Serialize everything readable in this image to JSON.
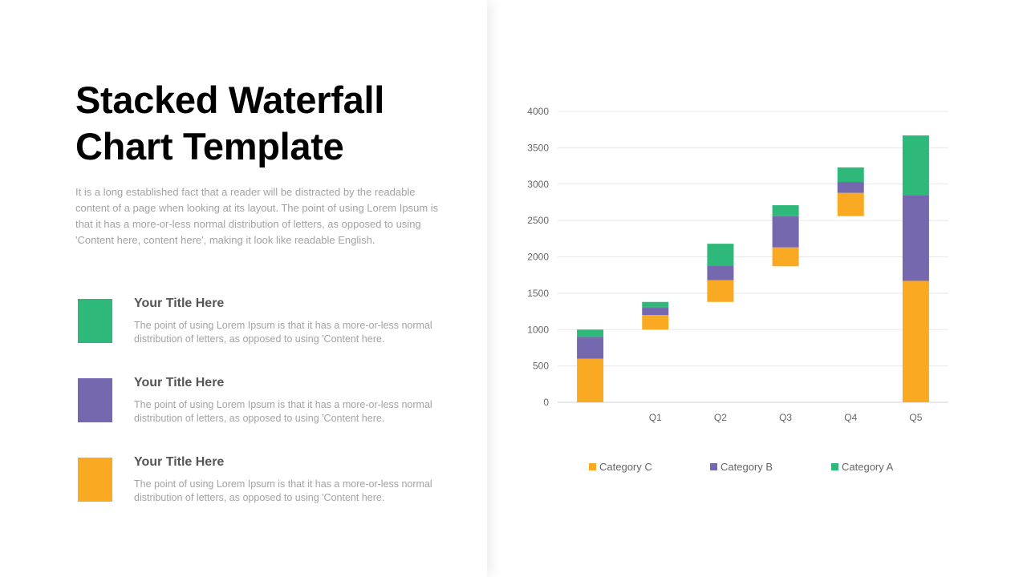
{
  "page": {
    "title_lines": [
      "Stacked Waterfall",
      "Chart Template"
    ],
    "intro": "It is a long established fact that a reader will be distracted by the readable content of a page when looking at its layout. The point of using Lorem Ipsum is that it has a more-or-less normal distribution of letters, as opposed to using 'Content here, content here', making it look like readable English."
  },
  "legend_items": [
    {
      "title": "Your Title Here",
      "desc": "The point of using Lorem Ipsum is that it has a more-or-less normal distribution of letters,  as opposed to using 'Content here.",
      "color": "#2eb87a"
    },
    {
      "title": "Your Title Here",
      "desc": "The point of using Lorem Ipsum is that it has a more-or-less normal distribution of letters,  as opposed to using 'Content here.",
      "color": "#7668ae"
    },
    {
      "title": "Your Title Here",
      "desc": "The point of using Lorem Ipsum is that it has a more-or-less normal distribution of letters,  as opposed to using 'Content here.",
      "color": "#faa922"
    }
  ],
  "chart_data": {
    "type": "bar",
    "stacked": true,
    "waterfall": true,
    "categories": [
      "",
      "Q1",
      "Q2",
      "Q3",
      "Q4",
      "Q5"
    ],
    "base": [
      0,
      1000,
      1380,
      1870,
      2560,
      0
    ],
    "series": [
      {
        "name": "Category C",
        "color": "#faa922",
        "values": [
          600,
          200,
          300,
          260,
          320,
          1670
        ]
      },
      {
        "name": "Category B",
        "color": "#7668ae",
        "values": [
          300,
          100,
          200,
          430,
          150,
          1180
        ]
      },
      {
        "name": "Category A",
        "color": "#2eb87a",
        "values": [
          100,
          80,
          300,
          150,
          200,
          820
        ]
      }
    ],
    "ylim": [
      0,
      4000
    ],
    "yticks": [
      0,
      500,
      1000,
      1500,
      2000,
      2500,
      3000,
      3500,
      4000
    ],
    "grid": true,
    "legend_position": "bottom"
  }
}
